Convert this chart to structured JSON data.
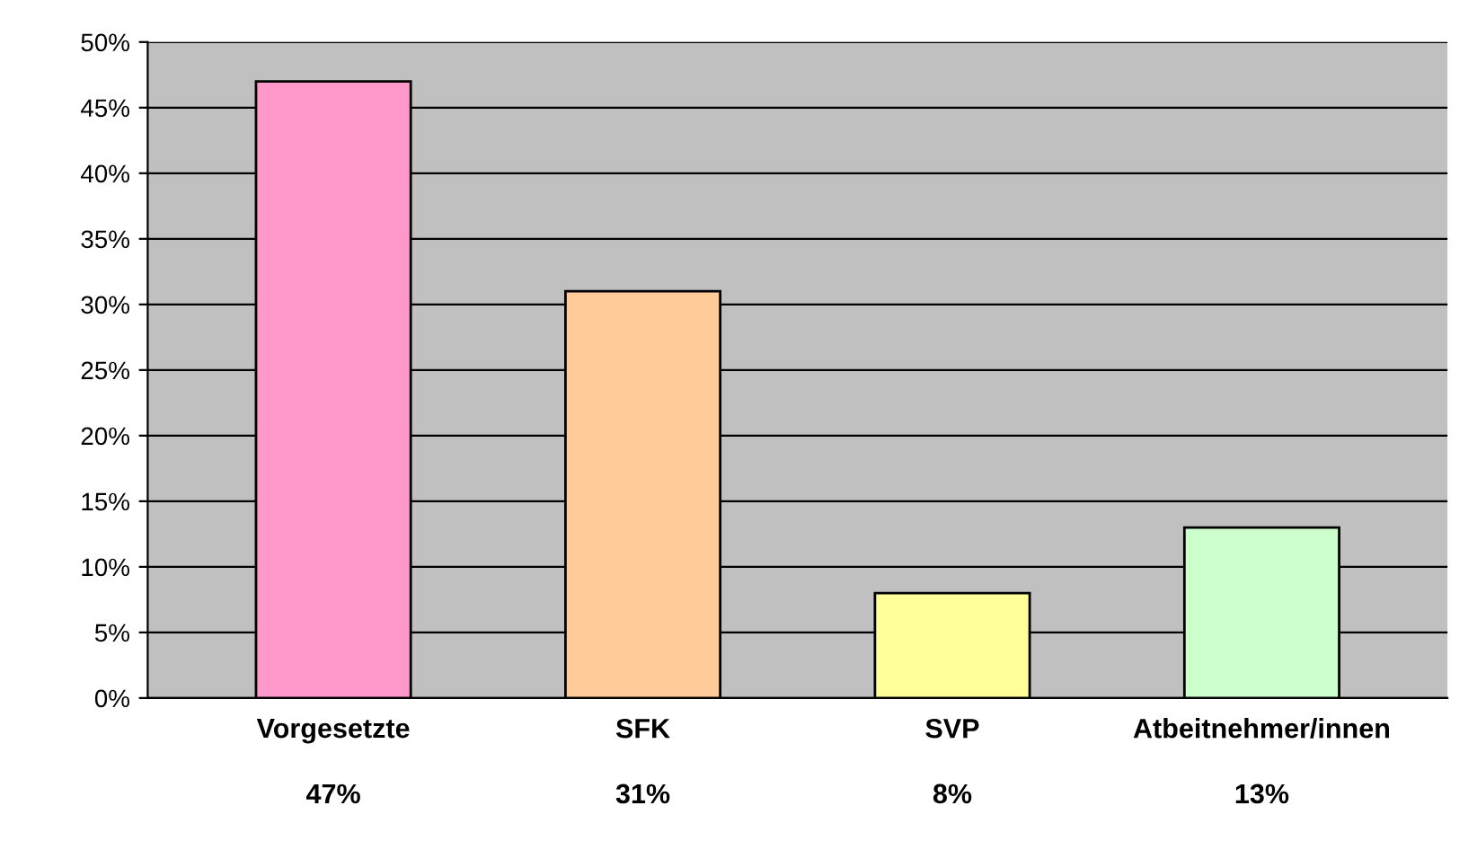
{
  "chart_data": {
    "type": "bar",
    "categories": [
      "Vorgesetzte",
      "SFK",
      "SVP",
      "Atbeitnehmer/innen"
    ],
    "values": [
      47,
      31,
      8,
      13
    ],
    "colors": [
      "#ff99cc",
      "#ffcc99",
      "#ffff99",
      "#ccffcc"
    ],
    "value_labels": [
      "47%",
      "31%",
      "8%",
      "13%"
    ],
    "ylim": [
      0,
      50
    ],
    "yticks": [
      {
        "value": 0,
        "label": "0%"
      },
      {
        "value": 5,
        "label": "5%"
      },
      {
        "value": 10,
        "label": "10%"
      },
      {
        "value": 15,
        "label": "15%"
      },
      {
        "value": 20,
        "label": "20%"
      },
      {
        "value": 25,
        "label": "25%"
      },
      {
        "value": 30,
        "label": "30%"
      },
      {
        "value": 35,
        "label": "35%"
      },
      {
        "value": 40,
        "label": "40%"
      },
      {
        "value": 45,
        "label": "45%"
      },
      {
        "value": 50,
        "label": "50%"
      }
    ],
    "grid": "y",
    "legend": false
  }
}
